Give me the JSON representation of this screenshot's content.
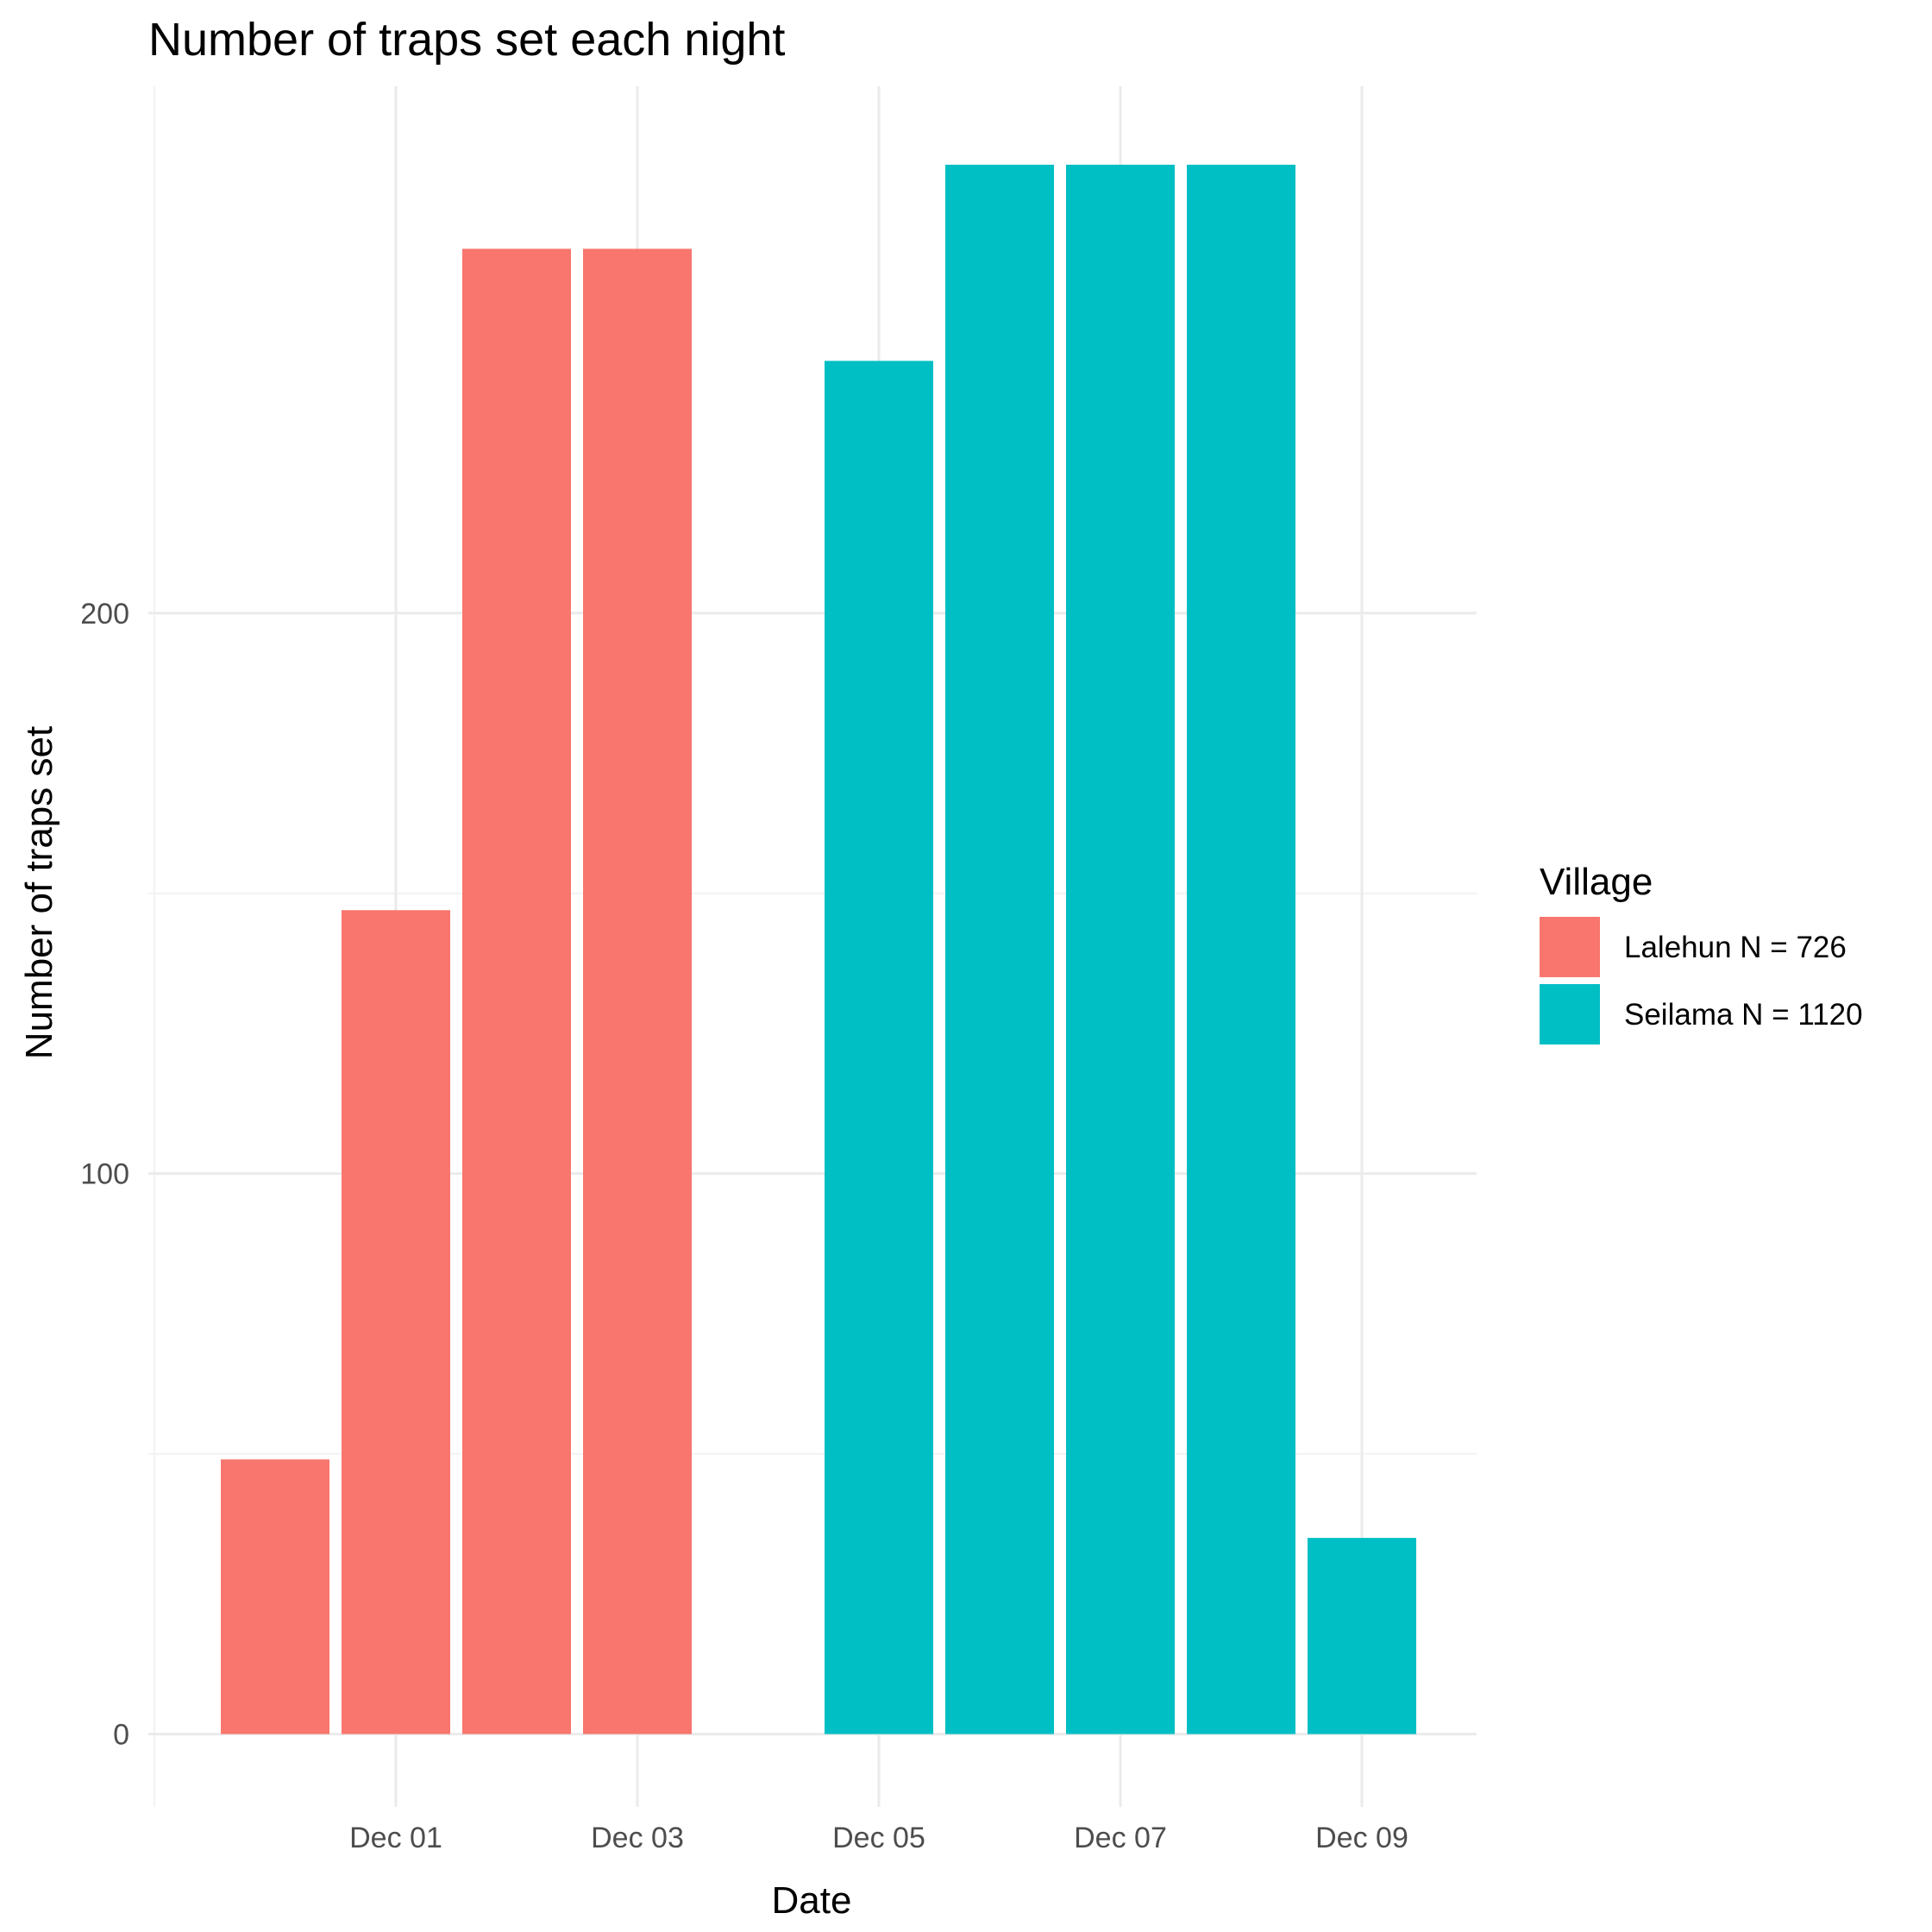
{
  "chart_data": {
    "type": "bar",
    "title": "Number of traps set each night",
    "xlabel": "Date",
    "ylabel": "Number of traps set",
    "x_tick_labels": [
      "Dec 01",
      "Dec 03",
      "Dec 05",
      "Dec 07",
      "Dec 09"
    ],
    "x_tick_dates": [
      "2021-12-01",
      "2021-12-03",
      "2021-12-05",
      "2021-12-07",
      "2021-12-09"
    ],
    "x_range": [
      "2021-11-29",
      "2021-12-09"
    ],
    "y_ticks": [
      0,
      100,
      200
    ],
    "ylim": [
      -13,
      294
    ],
    "grid": true,
    "legend": {
      "title": "Village",
      "position": "right"
    },
    "series": [
      {
        "name": "Lalehun N = 726",
        "color": "#F8766D",
        "points": [
          {
            "date": "2021-11-30",
            "value": 49
          },
          {
            "date": "2021-12-01",
            "value": 147
          },
          {
            "date": "2021-12-02",
            "value": 265
          },
          {
            "date": "2021-12-03",
            "value": 265
          }
        ]
      },
      {
        "name": "Seilama N = 1120",
        "color": "#00BFC4",
        "points": [
          {
            "date": "2021-12-05",
            "value": 245
          },
          {
            "date": "2021-12-06",
            "value": 280
          },
          {
            "date": "2021-12-07",
            "value": 280
          },
          {
            "date": "2021-12-08",
            "value": 280
          },
          {
            "date": "2021-12-09",
            "value": 35
          }
        ]
      }
    ]
  }
}
